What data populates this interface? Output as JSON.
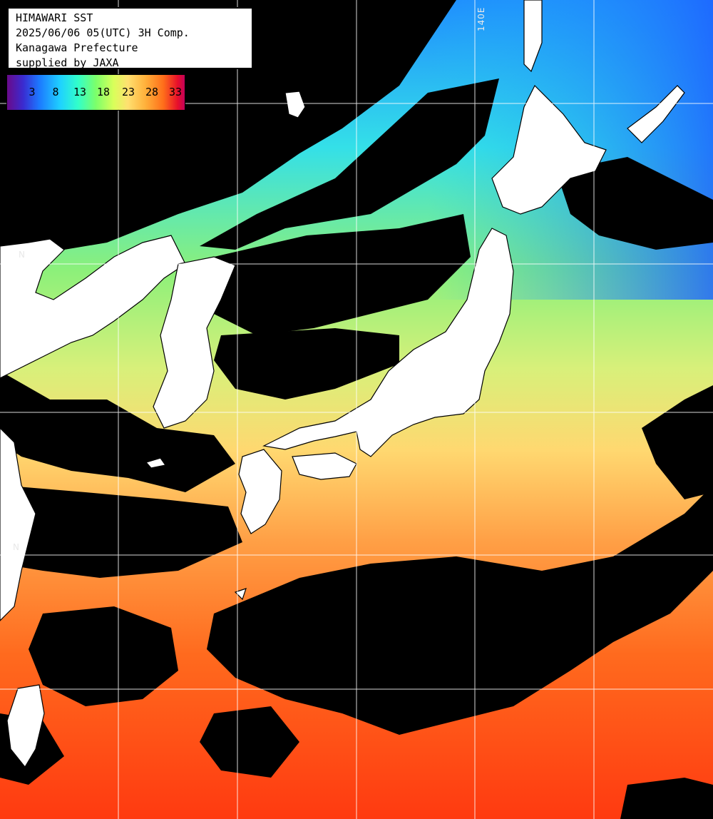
{
  "header": {
    "title": "HIMAWARI SST",
    "datetime": "2025/06/06 05(UTC) 3H Comp.",
    "region": "Kanagawa Prefecture",
    "credit": "supplied by JAXA"
  },
  "legend": {
    "ticks": [
      "3",
      "8",
      "13",
      "18",
      "23",
      "28",
      "33"
    ],
    "colors": [
      "#6a0a8a",
      "#1c78ff",
      "#32ffc9",
      "#7cff6a",
      "#ffe070",
      "#ff6e1a",
      "#c4005a"
    ]
  },
  "grid": {
    "lon_label": "140E",
    "lat_labels": [
      "N",
      "N"
    ]
  },
  "colors": {
    "cloud": "#000000",
    "land": "#ffffff",
    "grid": "#ffffff"
  }
}
